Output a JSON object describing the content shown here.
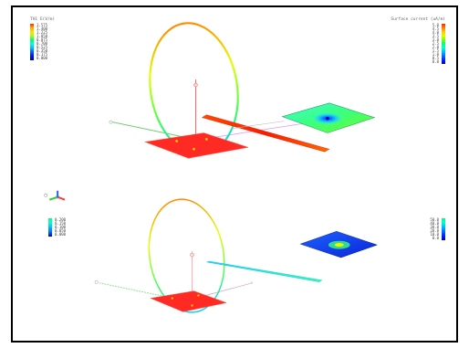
{
  "top": {
    "left_legend": {
      "title": "TH1 E(V/m)",
      "ticks": [
        "1.575",
        "1.400",
        "1.225",
        "1.050",
        "0.875",
        "0.700",
        "0.525",
        "0.350",
        "0.175",
        "0.000"
      ],
      "colors": [
        "#ff2a00",
        "#ffaa00",
        "#ffe000",
        "#a8ff00",
        "#00ff6a",
        "#00ffd5",
        "#00b7ff",
        "#0058ff",
        "#0010ff",
        "#0000a8"
      ]
    },
    "right_legend": {
      "title": "Surface current (uA/m)",
      "ticks": [
        "5.0",
        "4.5",
        "4.0",
        "3.5",
        "3.0",
        "2.5",
        "2.0",
        "1.5",
        "1.0",
        "0.5",
        "0.0"
      ],
      "colors": [
        "#ff2a00",
        "#ff7a00",
        "#ffcc00",
        "#d8ff00",
        "#7dff00",
        "#00ff7a",
        "#00ffd5",
        "#00b7ff",
        "#0070ff",
        "#0022ff",
        "#0000b0"
      ]
    }
  },
  "bottom": {
    "left_legend": {
      "ticks": [
        "0.200",
        "0.150",
        "0.100",
        "0.050",
        "0.000"
      ],
      "colors": [
        "#00ff7a",
        "#00ffd5",
        "#00b7ff",
        "#0070ff",
        "#0000b0"
      ]
    },
    "right_legend": {
      "ticks": [
        "50.0",
        "40.0",
        "30.0",
        "20.0",
        "10.0",
        "0.0"
      ],
      "colors": [
        "#00ff7a",
        "#00ffd5",
        "#00b7ff",
        "#0070ff",
        "#0022ff",
        "#0000b0"
      ]
    }
  }
}
